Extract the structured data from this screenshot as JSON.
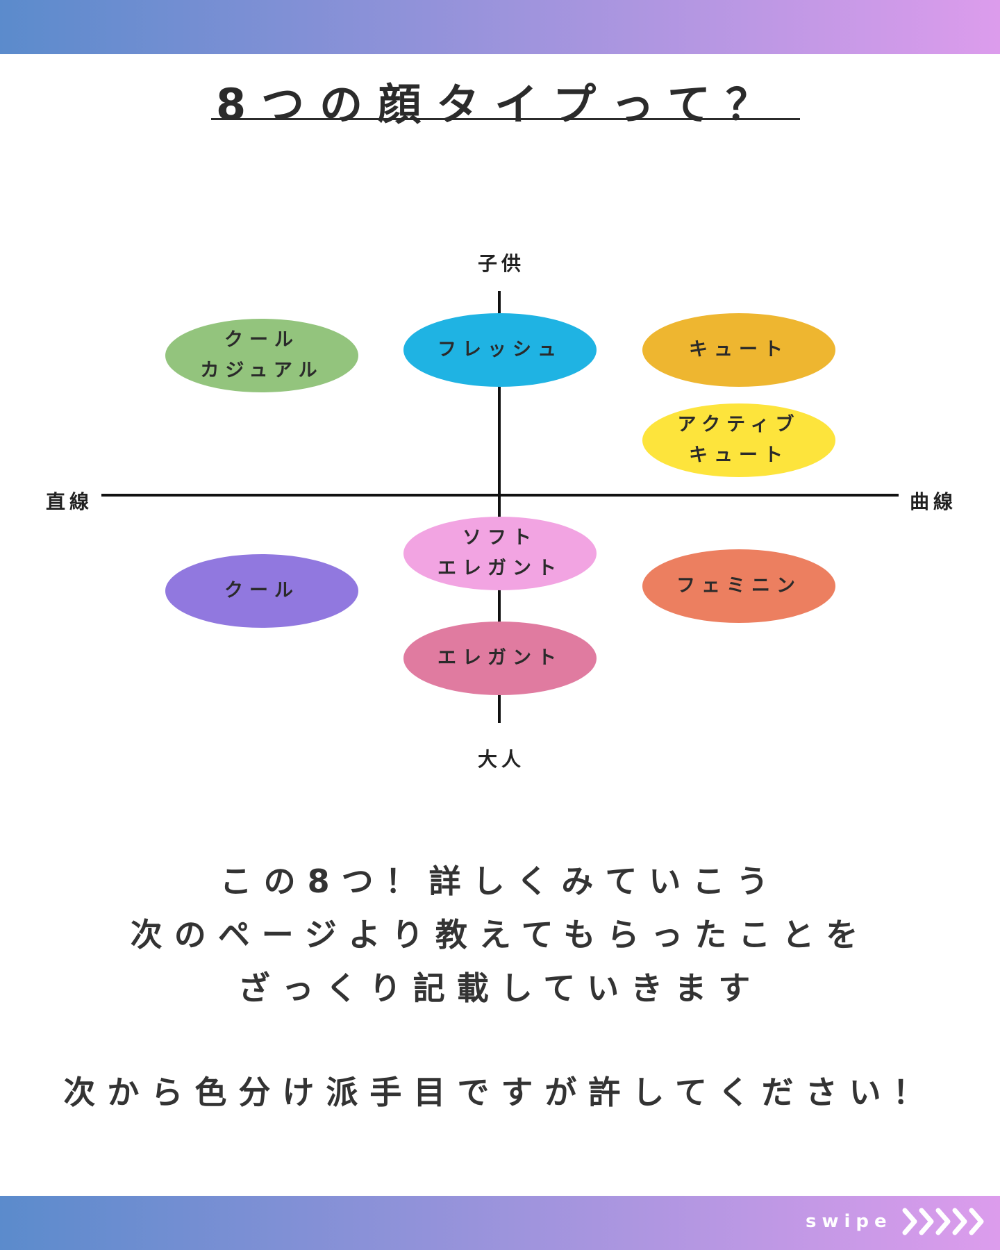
{
  "header": {
    "title": "8つの顔タイプって？"
  },
  "diagram": {
    "axis_top": "子供",
    "axis_bottom": "大人",
    "axis_left": "直線",
    "axis_right": "曲線",
    "types": [
      {
        "lines": [
          "クール",
          "カジュアル"
        ],
        "color": "#93c47d"
      },
      {
        "lines": [
          "フレッシュ"
        ],
        "color": "#1fb3e3"
      },
      {
        "lines": [
          "キュート"
        ],
        "color": "#eeb630"
      },
      {
        "lines": [
          "アクティブ",
          "キュート"
        ],
        "color": "#fde43c"
      },
      {
        "lines": [
          "ソフト",
          "エレガント"
        ],
        "color": "#f2a4e2"
      },
      {
        "lines": [
          "クール"
        ],
        "color": "#9178df"
      },
      {
        "lines": [
          "フェミニン"
        ],
        "color": "#ec7f60"
      },
      {
        "lines": [
          "エレガント"
        ],
        "color": "#e07ba0"
      }
    ]
  },
  "message": {
    "lines": [
      "この8つ！詳しくみていこう",
      "次のページより教えてもらったことを",
      "ざっくり記載していきます"
    ],
    "note": "次から色分け派手目ですが許してください！"
  },
  "footer": {
    "swipe_label": "swipe",
    "swipe_icon": "chevrons-right-icon"
  },
  "colors": {
    "gradient_start": "#5b8bcc",
    "gradient_end": "#dc9cec"
  }
}
